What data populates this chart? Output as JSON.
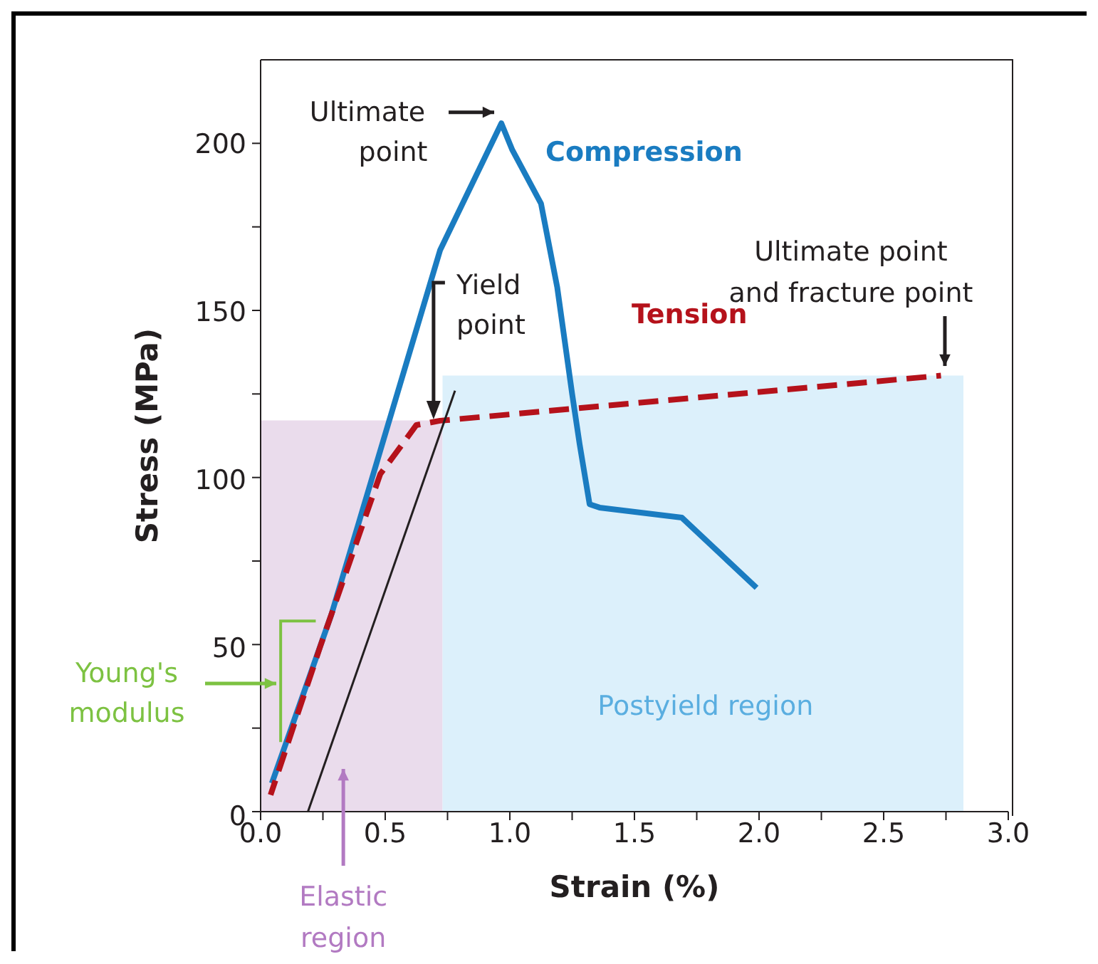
{
  "chart_data": {
    "type": "line",
    "xlabel": "Strain (%)",
    "ylabel": "Stress (MPa)",
    "xlim": [
      0,
      3
    ],
    "ylim": [
      0,
      225
    ],
    "xticks": [
      {
        "value": 0,
        "label": "0.0"
      },
      {
        "value": 0.25,
        "label": null
      },
      {
        "value": 0.5,
        "label": "0.5"
      },
      {
        "value": 0.75,
        "label": null
      },
      {
        "value": 1,
        "label": "1.0"
      },
      {
        "value": 1.25,
        "label": null
      },
      {
        "value": 1.5,
        "label": "1.5"
      },
      {
        "value": 1.75,
        "label": null
      },
      {
        "value": 2,
        "label": "2.0"
      },
      {
        "value": 2.25,
        "label": null
      },
      {
        "value": 2.5,
        "label": "2.5"
      },
      {
        "value": 2.75,
        "label": null
      },
      {
        "value": 3,
        "label": "3.0"
      }
    ],
    "yticks": [
      0,
      {
        "value": 25,
        "label": null
      },
      50,
      {
        "value": 75,
        "label": null
      },
      100,
      {
        "value": 125,
        "label": null
      },
      150,
      {
        "value": 175,
        "label": null
      },
      200
    ],
    "marker": "none",
    "legend": false,
    "series": [
      {
        "name": "Compression",
        "color": "#1a7cc1",
        "line_style": "solid",
        "x": [
          0.045,
          0.284,
          0.72,
          0.966,
          1.01,
          1.125,
          1.19,
          1.25,
          1.28,
          1.32,
          1.36,
          1.69,
          1.99
        ],
        "values": [
          8.5,
          59,
          168,
          206,
          198,
          182,
          157,
          125,
          110,
          92,
          91,
          88,
          67
        ]
      },
      {
        "name": "Tension",
        "color": "#b5121b",
        "line_style": "dashed",
        "x": [
          0.04,
          0.24,
          0.48,
          0.52,
          0.625,
          0.72,
          2.73
        ],
        "values": [
          5,
          49.6,
          101,
          105,
          115.7,
          117,
          130.5
        ]
      },
      {
        "color": "#231f20",
        "line_style": "solid",
        "x": [
          0.19,
          0.78
        ],
        "values": [
          0,
          126
        ]
      }
    ],
    "bands": [
      {
        "axis": "x",
        "from": 0,
        "to": 0.73,
        "label": "Elastic region",
        "color": "#eadcec"
      },
      {
        "axis": "x",
        "from": 0.73,
        "to": 2.82,
        "label": "Postyield region",
        "color": "#dcf0fb"
      }
    ],
    "annotations": [
      {
        "text": "Ultimate point",
        "x": 0.966,
        "y": 206
      },
      {
        "text": "Yield point",
        "x": 0.69,
        "y": 118
      },
      {
        "text": "Ultimate point and fracture point",
        "x": 2.73,
        "y": 130.5
      },
      "Young's modulus"
    ]
  }
}
